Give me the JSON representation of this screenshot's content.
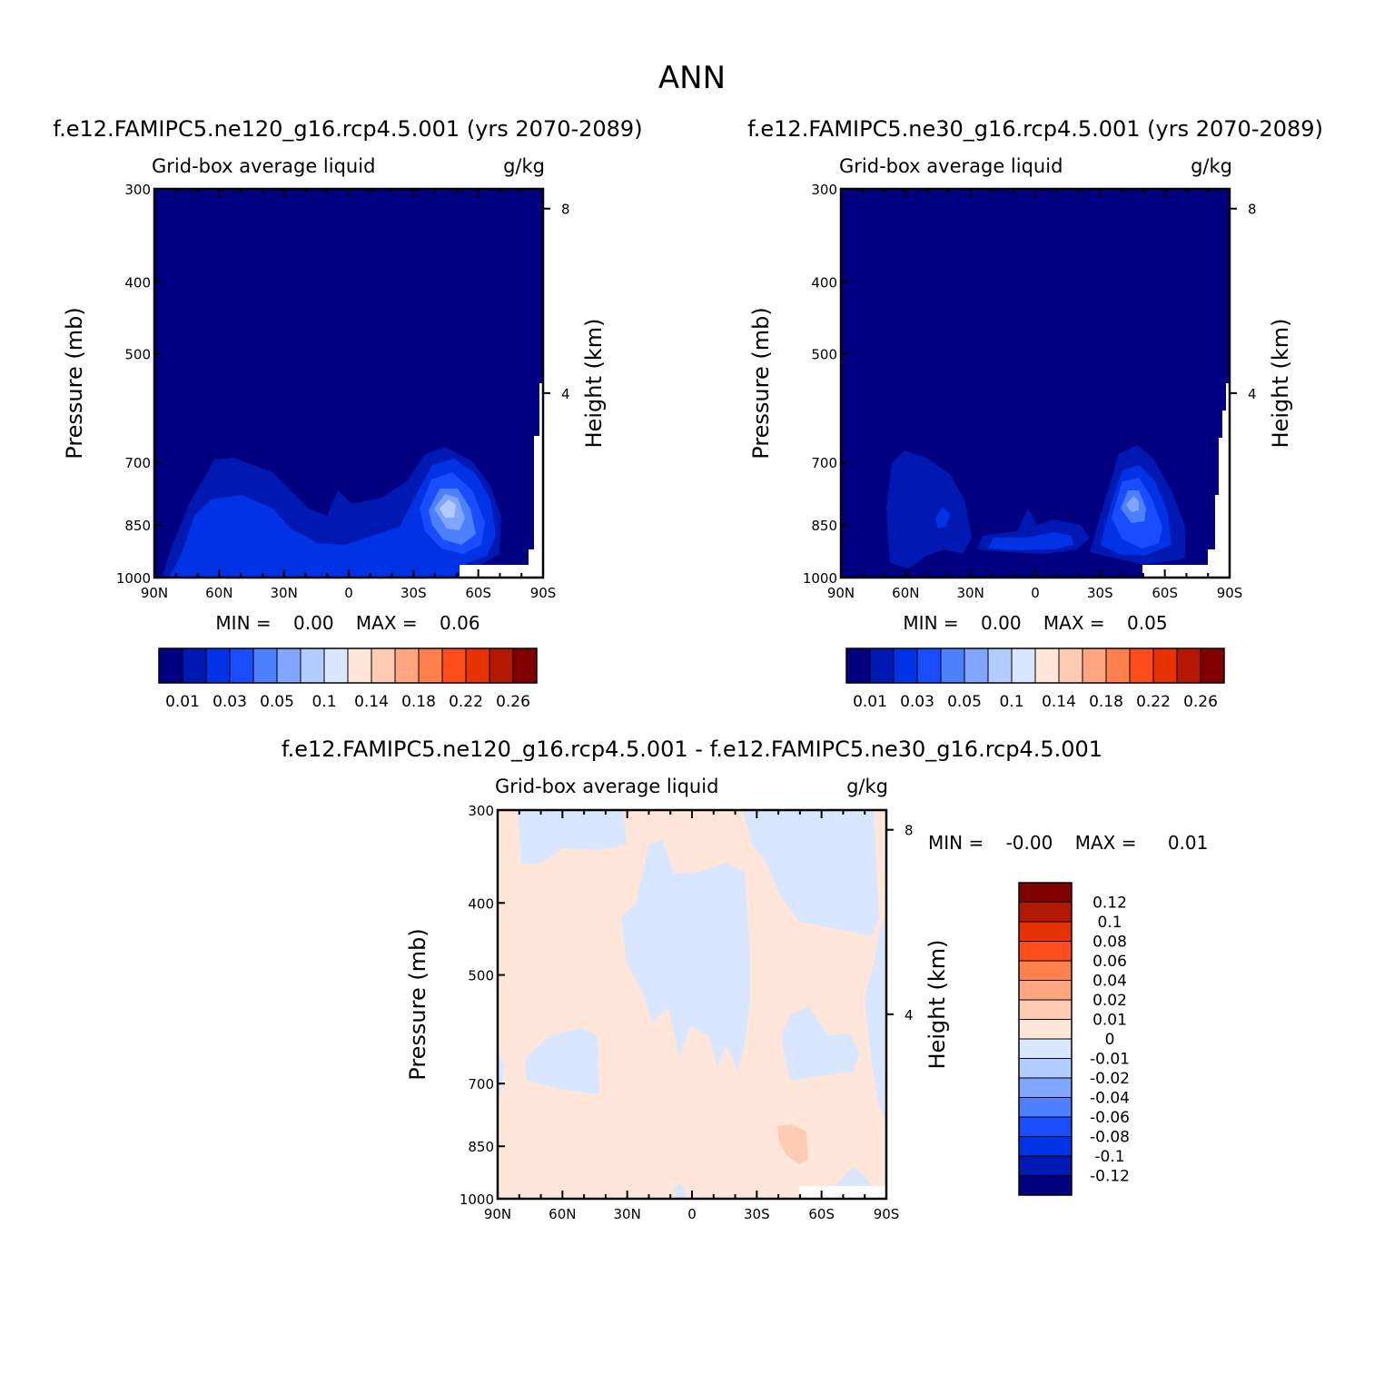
{
  "page": {
    "title": "ANN"
  },
  "colors": {
    "sequential": [
      "#000080",
      "#0019b3",
      "#0033e6",
      "#1a4dff",
      "#4d80ff",
      "#80a6ff",
      "#b3ccff",
      "#d9e6ff",
      "#ffe6d9",
      "#ffccb3",
      "#ffa680",
      "#ff804d",
      "#ff4d1a",
      "#e63300",
      "#b31900",
      "#800000"
    ],
    "diverging": [
      "#000080",
      "#0019b3",
      "#0033e6",
      "#1a4dff",
      "#4d80ff",
      "#80a6ff",
      "#b3ccff",
      "#d9e6ff",
      "#ffe6d9",
      "#ffccb3",
      "#ffa680",
      "#ff804d",
      "#ff4d1a",
      "#e63300",
      "#b31900",
      "#800000"
    ]
  },
  "chart_data": [
    {
      "type": "heatmap",
      "title": "f.e12.FAMIPC5.ne120_g16.rcp4.5.001 (yrs 2070-2089)",
      "field_label": "Grid-box average liquid",
      "units": "g/kg",
      "ylabel": "Pressure (mb)",
      "y2label": "Height (km)",
      "yticks": [
        "300",
        "400",
        "500",
        "700",
        "850",
        "1000"
      ],
      "y2ticks": [
        "8",
        "4"
      ],
      "xticks": [
        "90N",
        "60N",
        "30N",
        "0",
        "30S",
        "60S",
        "90S"
      ],
      "ylim": [
        1000,
        300
      ],
      "stats": {
        "min_label": "MIN =",
        "min": "0.00",
        "max_label": "MAX =",
        "max": "0.06"
      },
      "colorbar_labels": [
        "0.01",
        "0.03",
        "0.05",
        "0.1",
        "0.14",
        "0.18",
        "0.22",
        "0.26"
      ],
      "contour_levels": [
        0.01,
        0.02,
        0.03,
        0.04,
        0.05,
        0.06
      ]
    },
    {
      "type": "heatmap",
      "title": "f.e12.FAMIPC5.ne30_g16.rcp4.5.001 (yrs 2070-2089)",
      "field_label": "Grid-box average liquid",
      "units": "g/kg",
      "ylabel": "Pressure (mb)",
      "y2label": "Height (km)",
      "yticks": [
        "300",
        "400",
        "500",
        "700",
        "850",
        "1000"
      ],
      "y2ticks": [
        "8",
        "4"
      ],
      "xticks": [
        "90N",
        "60N",
        "30N",
        "0",
        "30S",
        "60S",
        "90S"
      ],
      "ylim": [
        1000,
        300
      ],
      "stats": {
        "min_label": "MIN =",
        "min": "0.00",
        "max_label": "MAX =",
        "max": "0.05"
      },
      "colorbar_labels": [
        "0.01",
        "0.03",
        "0.05",
        "0.1",
        "0.14",
        "0.18",
        "0.22",
        "0.26"
      ],
      "contour_levels": [
        0.01,
        0.02,
        0.03,
        0.04,
        0.05
      ]
    },
    {
      "type": "heatmap",
      "title": "f.e12.FAMIPC5.ne120_g16.rcp4.5.001 - f.e12.FAMIPC5.ne30_g16.rcp4.5.001",
      "field_label": "Grid-box average liquid",
      "units": "g/kg",
      "ylabel": "Pressure (mb)",
      "y2label": "Height (km)",
      "yticks": [
        "300",
        "400",
        "500",
        "700",
        "850",
        "1000"
      ],
      "y2ticks": [
        "8",
        "4"
      ],
      "xticks": [
        "90N",
        "60N",
        "30N",
        "0",
        "30S",
        "60S",
        "90S"
      ],
      "ylim": [
        1000,
        300
      ],
      "stats": {
        "min_label": "MIN =",
        "min": "-0.00",
        "max_label": "MAX =",
        "max": "0.01"
      },
      "colorbar_labels": [
        "0.12",
        "0.1",
        "0.08",
        "0.06",
        "0.04",
        "0.02",
        "0.01",
        "0",
        "-0.01",
        "-0.02",
        "-0.04",
        "-0.06",
        "-0.08",
        "-0.1",
        "-0.12"
      ]
    }
  ]
}
